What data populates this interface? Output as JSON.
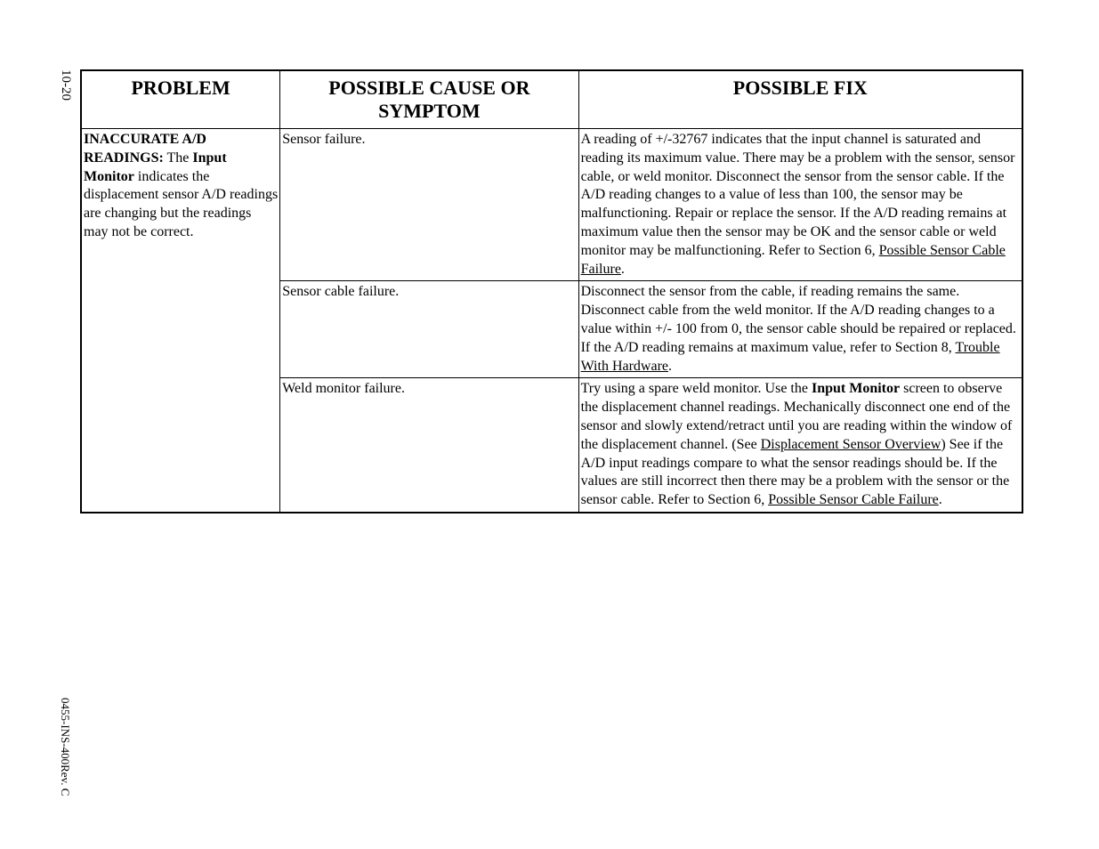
{
  "page_number": "10-20",
  "doc_id": "0455-INS-400Rev. C",
  "table": {
    "headers": {
      "problem": "PROBLEM",
      "cause": "POSSIBLE CAUSE OR SYMPTOM",
      "fix": "POSSIBLE FIX"
    },
    "problem": {
      "bold1": "INACCURATE A/D READINGS:",
      "text1": " The ",
      "bold2": "Input Monitor",
      "text2": " indicates the displacement sensor A/D readings are changing but the readings may not be correct."
    },
    "rows": [
      {
        "cause": "Sensor failure.",
        "fix_parts": {
          "p1": "A reading of +/-32767 indicates that the input channel is saturated and reading its maximum value. There may be a problem with the sensor, sensor cable, or weld monitor. Disconnect the sensor from the sensor cable. If the A/D reading changes to a value of less than 100, the sensor may be malfunctioning. Repair or replace the sensor. If the A/D reading remains at maximum value then the sensor may be OK and the sensor cable or weld monitor may be malfunctioning. Refer to Section 6, ",
          "u1": "Possible Sensor Cable Failure",
          "p2": "."
        }
      },
      {
        "cause": "Sensor cable failure.",
        "fix_parts": {
          "p1": "Disconnect the sensor from the cable, if reading remains the same. Disconnect cable from the weld monitor. If the A/D reading changes to a value within +/- 100 from 0, the sensor cable should be repaired or replaced.  If the A/D reading remains at maximum value, refer to Section 8, ",
          "u1": "Trouble With Hardware",
          "p2": "."
        }
      },
      {
        "cause": "Weld monitor failure.",
        "fix_parts": {
          "p1": "Try using a spare weld monitor. Use the ",
          "b1": "Input Monitor",
          "p2": " screen to observe the displacement channel readings.  Mechanically disconnect one end of the sensor and slowly extend/retract until you are reading within the window of the displacement channel. (See ",
          "u1": "Displacement Sensor Overview",
          "p3": ") See if the A/D input readings compare to what the sensor readings should be. If the values are still incorrect then there may be a problem with the sensor or the sensor cable. Refer to Section 6, ",
          "u2": "Possible Sensor Cable Failure",
          "p4": "."
        }
      }
    ]
  },
  "colors": {
    "text": "#000000",
    "background": "#ffffff",
    "border": "#000000"
  }
}
